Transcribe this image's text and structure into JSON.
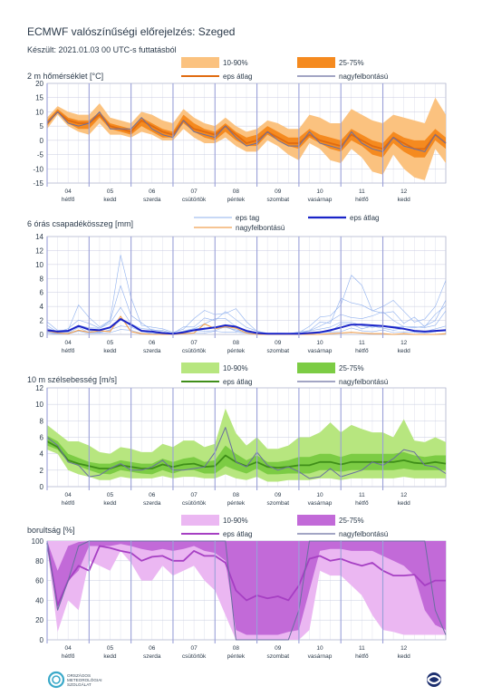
{
  "header": {
    "title": "ECMWF valószínűségi előrejelzés: Szeged",
    "subtitle": "Készült: 2021.01.03 00 UTC-s futtatásból"
  },
  "colors": {
    "temp_outer": "#fbc27f",
    "temp_inner": "#f58a1f",
    "temp_mean": "#e06b10",
    "hires": "#6a6fa0",
    "precip_member": "#8fb0ee",
    "precip_mean": "#1a24c8",
    "precip_hires": "#f0a050",
    "wind_outer": "#b7e67f",
    "wind_inner": "#7ccc44",
    "wind_mean": "#3f8e19",
    "cloud_outer": "#ebb7f2",
    "cloud_inner": "#c26ad8",
    "cloud_mean": "#a63fc3",
    "grid": "#c9cce0",
    "day_line": "#9aa0d8"
  },
  "days": [
    {
      "num": "04",
      "name": "hétfő"
    },
    {
      "num": "05",
      "name": "kedd"
    },
    {
      "num": "06",
      "name": "szerda"
    },
    {
      "num": "07",
      "name": "csütörtök"
    },
    {
      "num": "08",
      "name": "péntek"
    },
    {
      "num": "09",
      "name": "szombat"
    },
    {
      "num": "10",
      "name": "vasárnap"
    },
    {
      "num": "11",
      "name": "hétfő"
    },
    {
      "num": "12",
      "name": "kedd"
    }
  ],
  "legends": {
    "temp": {
      "outer": "10-90%",
      "inner": "25-75%",
      "mean": "eps átlag",
      "hires": "nagyfelbontású"
    },
    "precip": {
      "member": "eps tag",
      "mean": "eps átlag",
      "hires": "nagyfelbontású"
    },
    "wind": {
      "outer": "10-90%",
      "inner": "25-75%",
      "mean": "eps átlag",
      "hires": "nagyfelbontású"
    },
    "cloud": {
      "outer": "10-90%",
      "inner": "25-75%",
      "mean": "eps átlag",
      "hires": "nagyfelbontású"
    }
  },
  "chart_data": [
    {
      "type": "area",
      "title": "2 m hőmérséklet [°C]",
      "ylim": [
        -15,
        20
      ],
      "yticks": [
        -15,
        -10,
        -5,
        0,
        5,
        10,
        15,
        20
      ],
      "x_step_hours": 6,
      "p10": [
        4,
        9,
        5,
        3,
        2,
        6,
        2,
        2,
        1,
        3,
        2,
        0,
        0,
        4,
        1,
        -1,
        -1,
        1,
        -2,
        -4,
        -4,
        0,
        -2,
        -5,
        -7,
        -1,
        -3,
        -7,
        -8,
        -3,
        -6,
        -11,
        -12,
        -5,
        -10,
        -13,
        -14,
        -3,
        -8
      ],
      "p25": [
        5,
        10,
        6,
        4,
        4,
        8,
        4,
        3,
        2,
        5,
        3,
        1,
        1,
        6,
        3,
        1,
        0,
        3,
        0,
        -2,
        -2,
        2,
        0,
        -2,
        -3,
        1,
        -1,
        -3,
        -4,
        0,
        -2,
        -5,
        -6,
        -1,
        -4,
        -6,
        -6,
        0,
        -3
      ],
      "p75": [
        7,
        11,
        8,
        7,
        7,
        10,
        6,
        5,
        4,
        8,
        6,
        4,
        3,
        9,
        6,
        4,
        3,
        6,
        3,
        1,
        2,
        5,
        3,
        1,
        1,
        4,
        2,
        1,
        0,
        4,
        2,
        0,
        -1,
        3,
        1,
        0,
        0,
        4,
        1
      ],
      "p90": [
        8,
        12,
        10,
        9,
        9,
        13,
        8,
        7,
        6,
        10,
        9,
        7,
        6,
        11,
        8,
        6,
        5,
        8,
        5,
        3,
        4,
        7,
        6,
        4,
        4,
        9,
        8,
        6,
        6,
        11,
        9,
        7,
        6,
        9,
        8,
        7,
        6,
        15,
        9
      ],
      "mean": [
        6,
        10,
        7,
        6,
        6,
        9,
        5,
        4,
        3,
        7,
        5,
        3,
        2,
        7,
        4,
        3,
        2,
        5,
        2,
        -1,
        0,
        3,
        1,
        -1,
        -1,
        2,
        0,
        -1,
        -2,
        2,
        0,
        -2,
        -3,
        1,
        -1,
        -3,
        -3,
        2,
        -1
      ],
      "hires": [
        6,
        10,
        6,
        5,
        6,
        10,
        4,
        4,
        4,
        8,
        4,
        2,
        1,
        7,
        3,
        2,
        1,
        5,
        1,
        -2,
        -1,
        3,
        0,
        -2,
        -2,
        3,
        -1,
        -2,
        -3,
        3,
        -1,
        -3,
        -4,
        1,
        -2,
        -3,
        -4,
        2,
        -1
      ]
    },
    {
      "type": "line",
      "title": "6 órás csapadékösszeg [mm]",
      "ylim": [
        0,
        14
      ],
      "yticks": [
        0,
        2,
        4,
        6,
        8,
        10,
        12,
        14
      ],
      "x_step_hours": 6,
      "mean": [
        0.6,
        0.4,
        0.5,
        1.2,
        0.7,
        0.6,
        1.0,
        2.2,
        1.4,
        0.5,
        0.4,
        0.2,
        0.1,
        0.3,
        0.6,
        0.8,
        1.0,
        1.3,
        1.1,
        0.5,
        0.2,
        0.1,
        0.1,
        0.1,
        0.1,
        0.2,
        0.3,
        0.6,
        1.0,
        1.4,
        1.4,
        1.3,
        1.2,
        1.0,
        0.8,
        0.5,
        0.4,
        0.5,
        0.6
      ],
      "hires": [
        0.5,
        0.2,
        0.1,
        0.6,
        0.3,
        0.5,
        0.4,
        2.6,
        0.4,
        0.1,
        0.0,
        0.0,
        0.0,
        0.1,
        0.2,
        1.5,
        0.8,
        1.1,
        0.9,
        0.2,
        0.0,
        0.0,
        0.0,
        0.0,
        0.0,
        0.0,
        0.0,
        0.1,
        0.2,
        0.3,
        0.2,
        0.1,
        0.1,
        0.0,
        0.1,
        0.0,
        0.0,
        0.0,
        0.1
      ],
      "member_max": [
        1.8,
        0.8,
        1.2,
        5.0,
        2.5,
        1.8,
        3.5,
        12.0,
        6.0,
        2.5,
        1.5,
        0.8,
        0.4,
        1.5,
        2.8,
        3.5,
        4.5,
        5.5,
        4.0,
        2.0,
        0.8,
        0.3,
        0.2,
        0.2,
        0.5,
        1.5,
        2.5,
        4.0,
        8.0,
        9.5,
        7.5,
        6.0,
        6.5,
        5.0,
        4.0,
        3.5,
        3.0,
        4.0,
        11.0
      ]
    },
    {
      "type": "area",
      "title": "10 m szélsebesség [m/s]",
      "ylim": [
        0,
        12
      ],
      "yticks": [
        0,
        2,
        4,
        6,
        8,
        10,
        12
      ],
      "x_step_hours": 6,
      "p10": [
        4.5,
        4.0,
        2.0,
        1.5,
        1.2,
        0.8,
        0.8,
        1.2,
        1.0,
        1.0,
        1.0,
        1.3,
        1.0,
        1.2,
        1.2,
        1.0,
        1.0,
        1.5,
        1.0,
        0.8,
        1.2,
        0.6,
        0.6,
        0.8,
        0.8,
        0.8,
        1.0,
        1.0,
        0.8,
        1.0,
        1.0,
        1.0,
        1.0,
        1.0,
        1.2,
        1.0,
        1.0,
        1.0,
        1.0
      ],
      "p25": [
        5.0,
        4.5,
        3.0,
        2.5,
        2.0,
        1.6,
        1.5,
        2.0,
        1.8,
        1.6,
        1.5,
        2.0,
        1.6,
        2.0,
        2.0,
        1.6,
        1.6,
        2.5,
        2.0,
        1.6,
        2.2,
        1.5,
        1.5,
        1.6,
        1.6,
        1.6,
        2.0,
        2.0,
        1.8,
        2.0,
        2.0,
        2.0,
        2.0,
        2.0,
        2.2,
        2.0,
        2.0,
        2.0,
        2.0
      ],
      "p75": [
        6.2,
        5.5,
        4.0,
        3.5,
        3.0,
        2.8,
        2.8,
        3.2,
        3.0,
        2.8,
        2.8,
        3.4,
        3.0,
        3.4,
        3.6,
        3.0,
        3.2,
        5.0,
        4.0,
        3.2,
        3.8,
        3.0,
        3.0,
        3.2,
        3.6,
        3.6,
        4.0,
        4.0,
        3.6,
        4.0,
        4.0,
        4.0,
        4.0,
        4.0,
        4.2,
        3.8,
        3.6,
        3.8,
        3.8
      ],
      "p90": [
        7.5,
        6.5,
        5.5,
        5.5,
        5.0,
        4.2,
        4.0,
        4.8,
        4.6,
        4.2,
        4.2,
        5.2,
        4.8,
        5.6,
        5.6,
        4.8,
        5.2,
        9.5,
        6.5,
        5.0,
        6.0,
        4.6,
        4.6,
        5.0,
        6.0,
        6.0,
        6.6,
        7.8,
        6.6,
        7.5,
        7.0,
        6.6,
        6.6,
        6.0,
        8.2,
        5.6,
        5.4,
        6.0,
        5.4
      ],
      "mean": [
        5.5,
        4.8,
        3.2,
        2.8,
        2.5,
        2.2,
        2.2,
        2.6,
        2.4,
        2.2,
        2.2,
        2.7,
        2.4,
        2.7,
        2.8,
        2.4,
        2.5,
        3.8,
        3.0,
        2.5,
        3.0,
        2.4,
        2.3,
        2.4,
        2.6,
        2.6,
        3.0,
        3.0,
        2.7,
        3.0,
        3.0,
        3.0,
        3.0,
        3.0,
        3.2,
        2.9,
        2.8,
        3.0,
        2.8
      ],
      "hires": [
        6.0,
        5.0,
        3.0,
        2.6,
        1.2,
        1.4,
        2.2,
        2.8,
        2.0,
        2.0,
        2.4,
        3.2,
        2.0,
        2.0,
        2.2,
        2.4,
        4.2,
        7.2,
        3.0,
        2.4,
        4.2,
        2.6,
        2.0,
        2.4,
        1.8,
        1.0,
        1.2,
        2.2,
        1.2,
        1.6,
        2.0,
        3.0,
        2.6,
        3.4,
        4.5,
        4.2,
        2.6,
        2.4,
        1.6
      ]
    },
    {
      "type": "area",
      "title": "borultság [%]",
      "ylim": [
        0,
        100
      ],
      "yticks": [
        0,
        20,
        40,
        60,
        80,
        100
      ],
      "x_step_hours": 6,
      "p10": [
        95,
        8,
        40,
        30,
        80,
        75,
        70,
        90,
        78,
        60,
        60,
        75,
        65,
        70,
        75,
        60,
        50,
        25,
        0,
        0,
        0,
        0,
        0,
        0,
        0,
        10,
        70,
        65,
        65,
        55,
        45,
        25,
        10,
        8,
        5,
        5,
        5,
        5,
        5
      ],
      "p25": [
        98,
        30,
        60,
        70,
        95,
        95,
        95,
        97,
        95,
        92,
        90,
        92,
        90,
        92,
        95,
        90,
        88,
        80,
        10,
        5,
        5,
        5,
        5,
        8,
        10,
        50,
        90,
        92,
        92,
        90,
        90,
        90,
        85,
        80,
        75,
        65,
        30,
        15,
        10
      ],
      "p75": [
        100,
        70,
        95,
        99,
        100,
        100,
        100,
        100,
        100,
        100,
        100,
        100,
        100,
        100,
        100,
        100,
        100,
        100,
        100,
        100,
        100,
        100,
        100,
        100,
        100,
        100,
        100,
        100,
        100,
        100,
        100,
        100,
        100,
        100,
        100,
        100,
        100,
        100,
        100
      ],
      "p90": [
        100,
        100,
        100,
        100,
        100,
        100,
        100,
        100,
        100,
        100,
        100,
        100,
        100,
        100,
        100,
        100,
        100,
        100,
        100,
        100,
        100,
        100,
        100,
        100,
        100,
        100,
        100,
        100,
        100,
        100,
        100,
        100,
        100,
        100,
        100,
        100,
        100,
        100,
        100
      ],
      "mean": [
        98,
        35,
        60,
        75,
        70,
        95,
        93,
        90,
        88,
        80,
        84,
        85,
        80,
        80,
        90,
        85,
        85,
        78,
        50,
        40,
        45,
        42,
        44,
        40,
        55,
        82,
        85,
        80,
        82,
        78,
        75,
        78,
        70,
        65,
        65,
        66,
        55,
        60,
        60
      ],
      "hires": [
        100,
        30,
        60,
        95,
        100,
        100,
        100,
        100,
        100,
        100,
        100,
        100,
        100,
        100,
        100,
        100,
        100,
        100,
        0,
        0,
        0,
        0,
        0,
        0,
        30,
        100,
        100,
        100,
        100,
        100,
        100,
        100,
        100,
        100,
        100,
        100,
        100,
        30,
        5
      ]
    }
  ],
  "footer": {
    "logo_left_lines": [
      "ORSZÁGOS",
      "METEOROLÓGIAI",
      "SZOLGÁLAT"
    ]
  }
}
